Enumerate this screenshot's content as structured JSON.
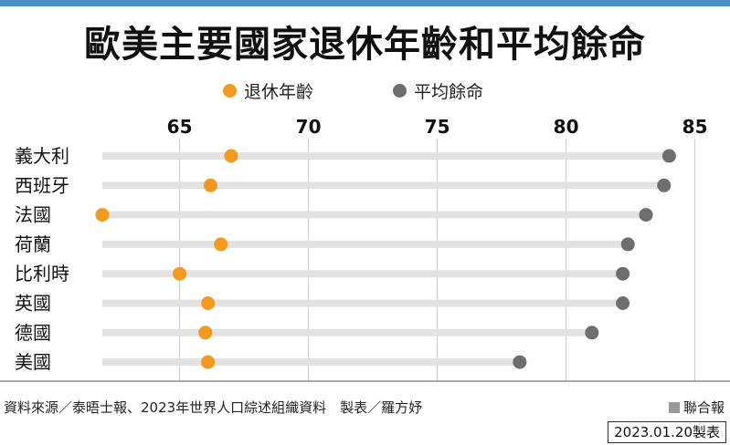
{
  "title": "歐美主要國家退休年齡和平均餘命",
  "legend": {
    "retirement_label": "退休年齡",
    "life_label": "平均餘命"
  },
  "colors": {
    "retirement": "#f39a1e",
    "life": "#6e6e6e",
    "accent_bar": "#4a8cc4"
  },
  "footer": {
    "source": "資料來源／泰晤士報、2023年世界人口綜述組織資料　製表／羅方妤",
    "brand": "聯合報",
    "date": "2023.01.20製表"
  },
  "chart_data": {
    "type": "dot-range",
    "x_ticks": [
      65,
      70,
      75,
      80,
      85
    ],
    "xlim": [
      61,
      86
    ],
    "grid": true,
    "legend_position": "top",
    "categories": [
      "義大利",
      "西班牙",
      "法國",
      "荷蘭",
      "比利時",
      "英國",
      "德國",
      "美國"
    ],
    "series": [
      {
        "name": "退休年齡",
        "values": [
          67,
          66.2,
          62,
          66.6,
          65,
          66.1,
          66,
          66.1
        ]
      },
      {
        "name": "平均餘命",
        "values": [
          84,
          83.8,
          83.1,
          82.4,
          82.2,
          82.2,
          81,
          78.2
        ]
      }
    ]
  }
}
